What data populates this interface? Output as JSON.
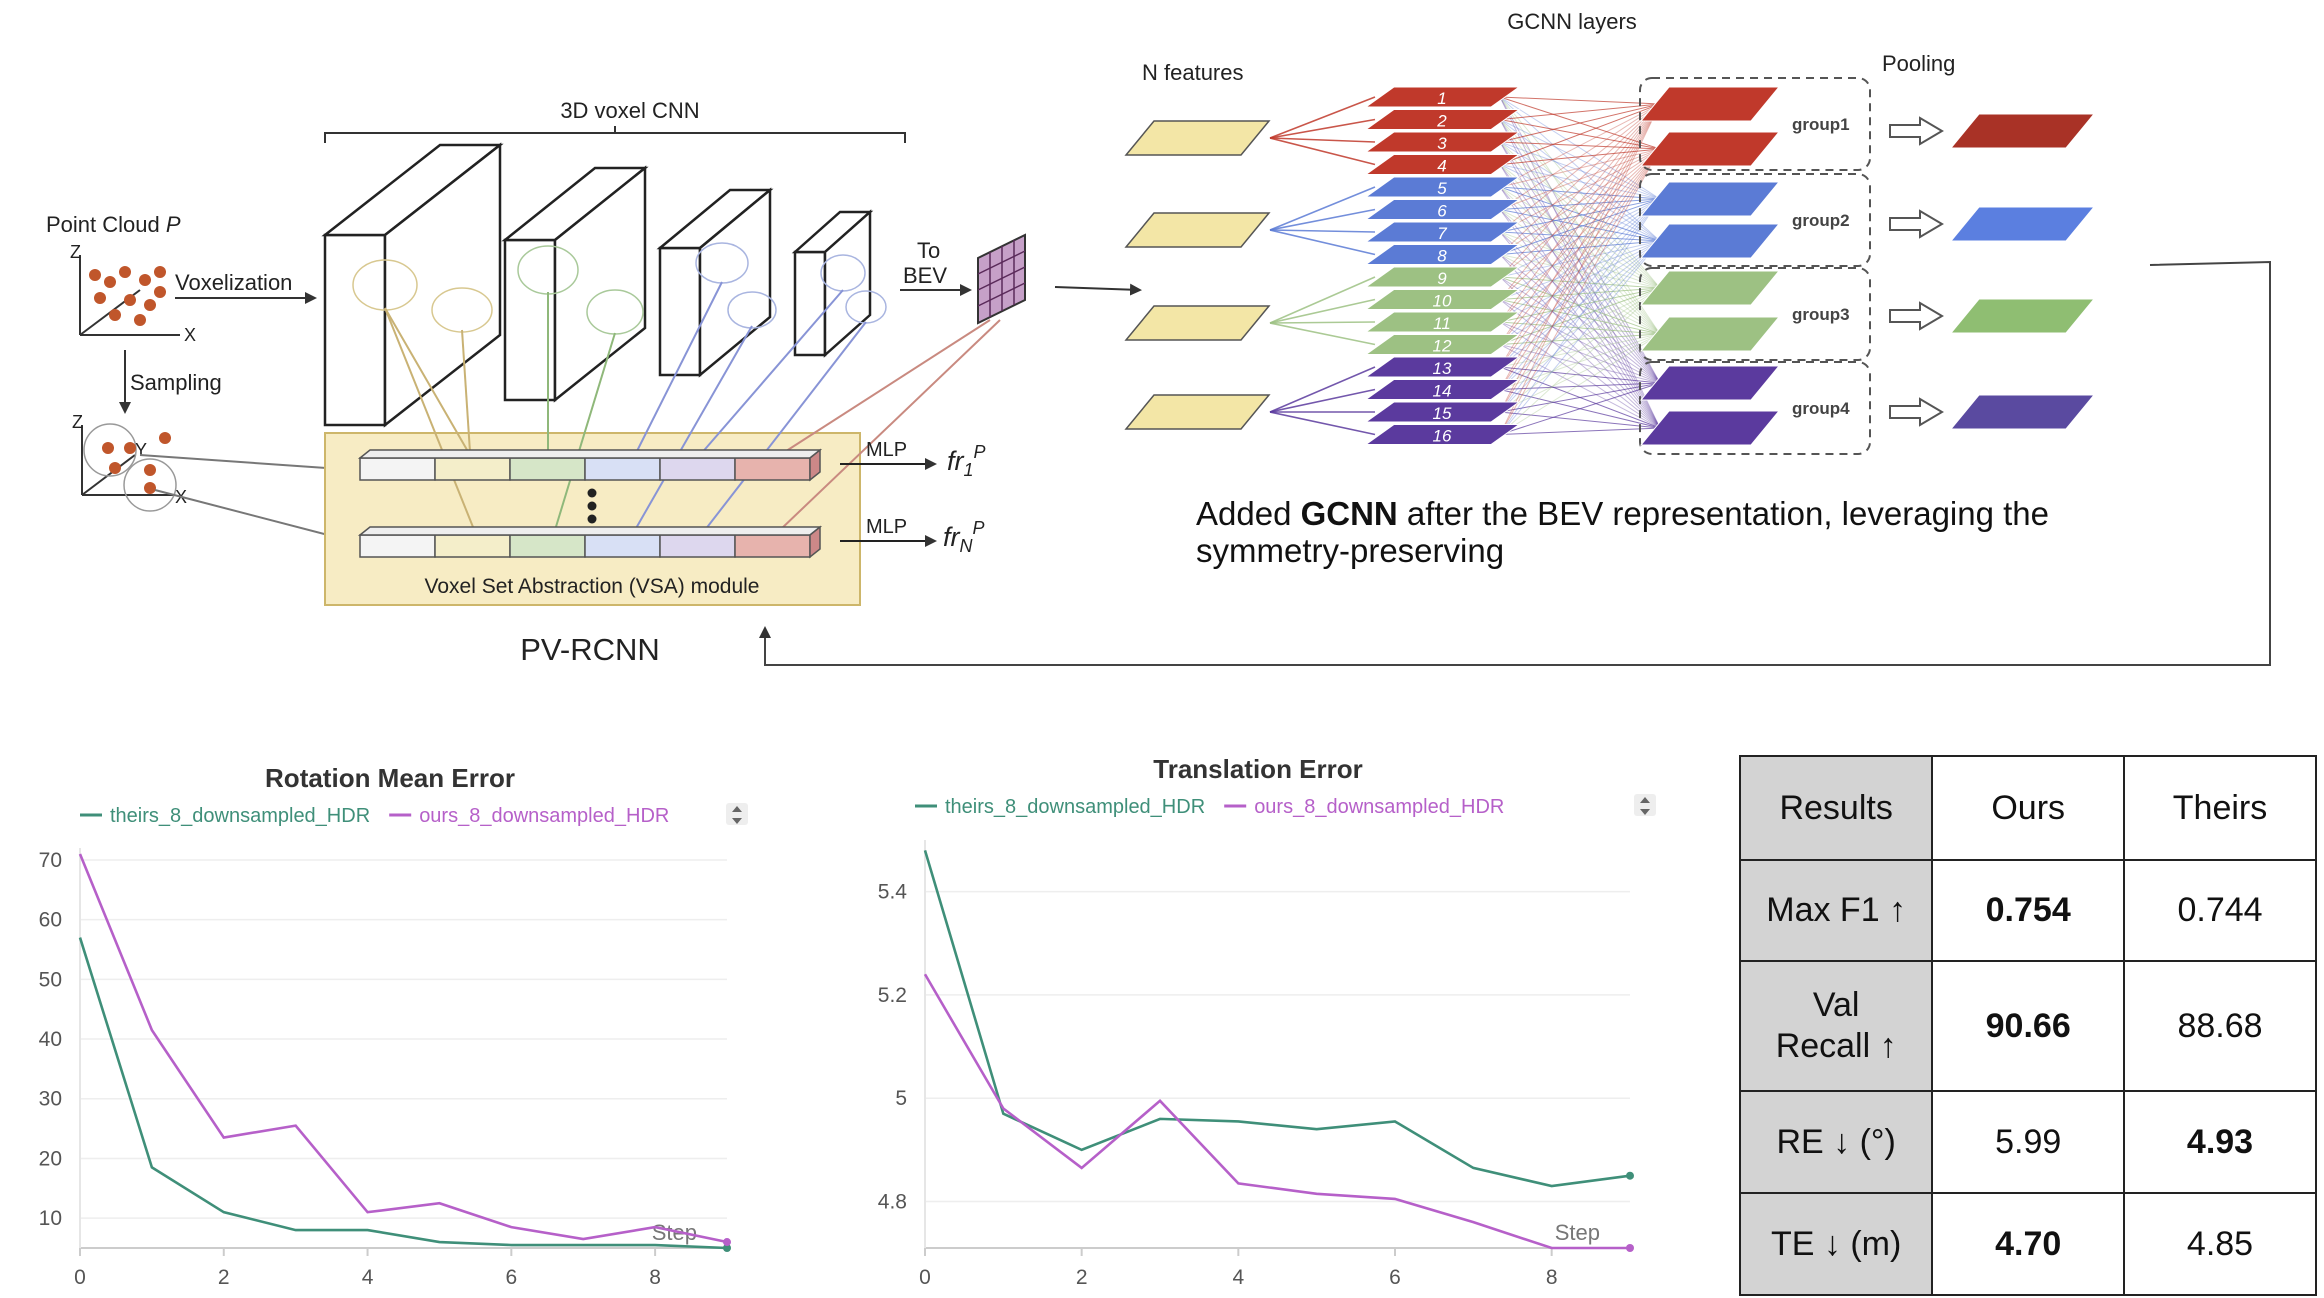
{
  "pvrcnn": {
    "title": "PV-RCNN",
    "cnn_label": "3D voxel CNN",
    "point_cloud_label": "Point Cloud",
    "point_cloud_symbol": "P",
    "voxelization_label": "Voxelization",
    "sampling_label": "Sampling",
    "axis_z": "Z",
    "axis_y": "Y",
    "axis_x": "X",
    "to_bev_line1": "To",
    "to_bev_line2": "BEV",
    "mlp_label": "MLP",
    "fr1_base": "fr",
    "fr1_sub": "1",
    "frN_sub": "N",
    "fr_sup": "P",
    "vsa_label": "Voxel Set Abstraction (VSA) module",
    "vsa_fill": "#f7ecc4"
  },
  "gcnn": {
    "title": "GCNN layers",
    "n_features_label": "N features",
    "pooling_label": "Pooling",
    "node_numbers": [
      "1",
      "2",
      "3",
      "4",
      "5",
      "6",
      "7",
      "8",
      "9",
      "10",
      "11",
      "12",
      "13",
      "14",
      "15",
      "16"
    ],
    "groups": [
      {
        "label": "group1",
        "color": "#c0392b",
        "pool_color": "#a93226"
      },
      {
        "label": "group2",
        "color": "#5b7bd5",
        "pool_color": "#5b7fe0"
      },
      {
        "label": "group3",
        "color": "#9dc183",
        "pool_color": "#8fbe72"
      },
      {
        "label": "group4",
        "color": "#5b3a9e",
        "pool_color": "#5a4aa0"
      }
    ],
    "feature_fill": "#f3e6a6",
    "caption_prefix": "Added ",
    "caption_bold": "GCNN",
    "caption_rest_line1": " after the BEV representation, leveraging the",
    "caption_line2": "symmetry-preserving"
  },
  "charts_step_label": "Step",
  "chart_data": [
    {
      "type": "line",
      "title": "Rotation Mean Error",
      "xlabel": "Step",
      "ylabel": "",
      "x_ticks": [
        0,
        2,
        4,
        6,
        8
      ],
      "y_ticks": [
        10,
        20,
        30,
        40,
        50,
        60,
        70
      ],
      "xlim": [
        0,
        9
      ],
      "ylim": [
        5,
        72
      ],
      "series": [
        {
          "name": "theirs_8_downsampled_HDR",
          "color": "#3f8f79",
          "x": [
            0,
            1,
            2,
            3,
            4,
            5,
            6,
            7,
            8,
            9
          ],
          "y": [
            57,
            18.5,
            11,
            8,
            8,
            6,
            5.5,
            5.5,
            5.5,
            5
          ]
        },
        {
          "name": "ours_8_downsampled_HDR",
          "color": "#b660c9",
          "x": [
            0,
            1,
            2,
            3,
            4,
            5,
            6,
            7,
            8,
            9
          ],
          "y": [
            71,
            41.5,
            23.5,
            25.5,
            11,
            12.5,
            8.5,
            6.5,
            8.5,
            6
          ]
        }
      ]
    },
    {
      "type": "line",
      "title": "Translation Error",
      "xlabel": "Step",
      "ylabel": "",
      "x_ticks": [
        0,
        2,
        4,
        6,
        8
      ],
      "y_ticks": [
        4.8,
        5,
        5.2,
        5.4
      ],
      "y_tick_labels": [
        "4.8",
        "5",
        "5.2",
        "5.4"
      ],
      "xlim": [
        0,
        9
      ],
      "ylim": [
        4.71,
        5.5
      ],
      "series": [
        {
          "name": "theirs_8_downsampled_HDR",
          "color": "#3f8f79",
          "x": [
            0,
            1,
            2,
            3,
            4,
            5,
            6,
            7,
            8,
            9
          ],
          "y": [
            5.48,
            4.97,
            4.9,
            4.96,
            4.955,
            4.94,
            4.955,
            4.865,
            4.83,
            4.85
          ]
        },
        {
          "name": "ours_8_downsampled_HDR",
          "color": "#b660c9",
          "x": [
            0,
            1,
            2,
            3,
            4,
            5,
            6,
            7,
            8,
            9
          ],
          "y": [
            5.24,
            4.98,
            4.865,
            4.995,
            4.835,
            4.815,
            4.805,
            4.76,
            4.71,
            4.71
          ]
        }
      ]
    },
    {
      "type": "table",
      "headers": [
        "Results",
        "Ours",
        "Theirs"
      ],
      "rows": [
        {
          "label": "Max F1 ↑",
          "ours": "0.754",
          "theirs": "0.744",
          "best": "ours"
        },
        {
          "label": "Val\nRecall ↑",
          "ours": "90.66",
          "theirs": "88.68",
          "best": "ours"
        },
        {
          "label": "RE ↓ (°)",
          "ours": "5.99",
          "theirs": "4.93",
          "best": "theirs"
        },
        {
          "label": "TE ↓ (m)",
          "ours": "4.70",
          "theirs": "4.85",
          "best": "ours"
        }
      ]
    }
  ]
}
